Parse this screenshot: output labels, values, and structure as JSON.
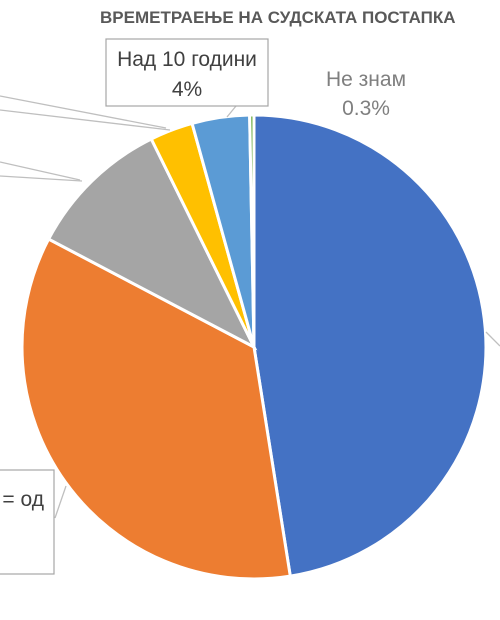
{
  "chart_data": {
    "type": "pie",
    "title": "ВРЕМЕТРАЕЊЕ НА СУДСКАТА ПОСТАПКА",
    "slices": [
      {
        "label": "",
        "value": 47.5,
        "value_label": "",
        "color": "#4472c4"
      },
      {
        "label": "= од",
        "value": 35.2,
        "value_label": "",
        "color": "#ed7d31"
      },
      {
        "label": "",
        "value": 10.0,
        "value_label": "",
        "color": "#a5a5a5"
      },
      {
        "label": "",
        "value": 3.0,
        "value_label": "",
        "color": "#ffc000"
      },
      {
        "label": "Над 10 години",
        "value": 4.0,
        "value_label": "4%",
        "color": "#5b9bd5"
      },
      {
        "label": "Не знам",
        "value": 0.3,
        "value_label": "0.3%",
        "color": "#70ad47"
      }
    ]
  }
}
